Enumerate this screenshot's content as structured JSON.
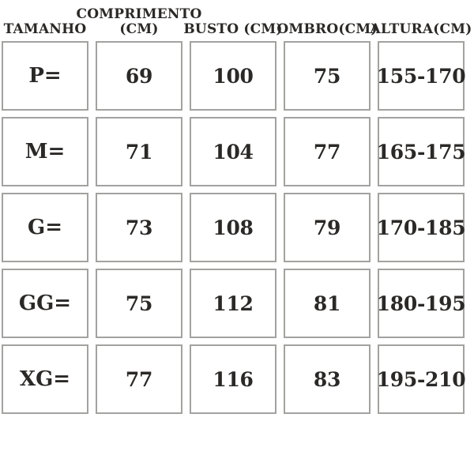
{
  "colors": {
    "background": "#ffffff",
    "text": "#2b2927",
    "cell_border": "#a2a2a0"
  },
  "chart_data": {
    "type": "table",
    "title": "",
    "columns": [
      {
        "id": "tamanho",
        "label": "TAMANHO",
        "lines": [
          "TAMANHO"
        ]
      },
      {
        "id": "comprimento",
        "label": "COMPRIMENTO (CM)",
        "lines": [
          "COMPRIMENTO",
          "(CM)"
        ]
      },
      {
        "id": "busto",
        "label": "BUSTO (CM)",
        "lines": [
          "BUSTO (CM)"
        ]
      },
      {
        "id": "ombro",
        "label": "OMBRO(CM)",
        "lines": [
          "OMBRO(CM)"
        ]
      },
      {
        "id": "altura",
        "label": "ALTURA(CM)",
        "lines": [
          "ALTURA(CM)"
        ]
      }
    ],
    "rows": [
      {
        "tamanho": "P=",
        "comprimento": "69",
        "busto": "100",
        "ombro": "75",
        "altura": "155-170"
      },
      {
        "tamanho": "M=",
        "comprimento": "71",
        "busto": "104",
        "ombro": "77",
        "altura": "165-175"
      },
      {
        "tamanho": "G=",
        "comprimento": "73",
        "busto": "108",
        "ombro": "79",
        "altura": "170-185"
      },
      {
        "tamanho": "GG=",
        "comprimento": "75",
        "busto": "112",
        "ombro": "81",
        "altura": "180-195"
      },
      {
        "tamanho": "XG=",
        "comprimento": "77",
        "busto": "116",
        "ombro": "83",
        "altura": "195-210"
      }
    ]
  }
}
